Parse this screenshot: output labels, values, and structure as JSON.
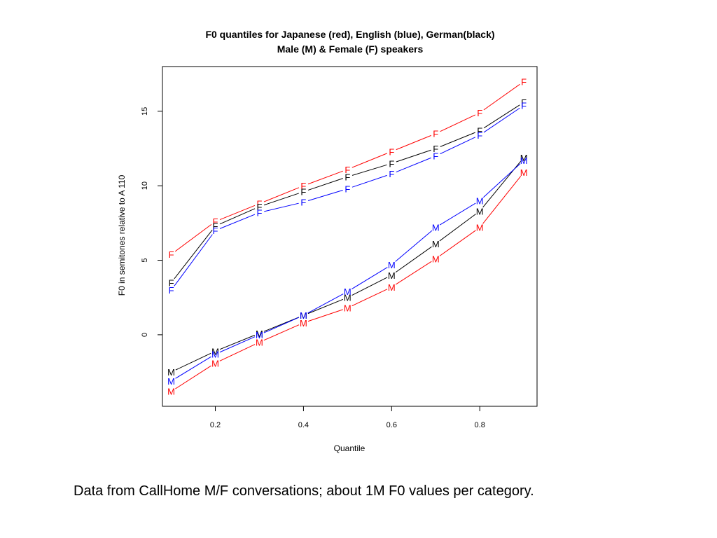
{
  "chart_data": {
    "type": "line",
    "title": "F0 quantiles for Japanese (red), English (blue), German(black)",
    "subtitle": "Male (M) & Female (F) speakers",
    "xlabel": "Quantile",
    "ylabel": "F0 in semitones relative to A 110",
    "xlim": [
      0.08,
      0.93
    ],
    "ylim": [
      -4.8,
      18
    ],
    "x_ticks": [
      "0.2",
      "0.4",
      "0.6",
      "0.8"
    ],
    "y_ticks": [
      "0",
      "5",
      "10",
      "15"
    ],
    "grid": false,
    "x": [
      0.1,
      0.2,
      0.3,
      0.4,
      0.5,
      0.6,
      0.7,
      0.8,
      0.9
    ],
    "series": [
      {
        "marker": "F",
        "color": "#ff0000",
        "values": [
          5.4,
          7.6,
          8.8,
          10.0,
          11.1,
          12.3,
          13.5,
          14.9,
          17.0
        ]
      },
      {
        "marker": "F",
        "color": "#000000",
        "values": [
          3.5,
          7.3,
          8.6,
          9.6,
          10.6,
          11.5,
          12.5,
          13.7,
          15.6
        ]
      },
      {
        "marker": "F",
        "color": "#0000ff",
        "values": [
          3.0,
          7.0,
          8.2,
          8.9,
          9.8,
          10.8,
          12.0,
          13.4,
          15.4
        ]
      },
      {
        "marker": "M",
        "color": "#ff0000",
        "values": [
          -3.8,
          -1.9,
          -0.5,
          0.8,
          1.8,
          3.2,
          5.1,
          7.2,
          10.9
        ]
      },
      {
        "marker": "M",
        "color": "#000000",
        "values": [
          -2.5,
          -1.1,
          0.1,
          1.3,
          2.5,
          4.0,
          6.1,
          8.3,
          11.9
        ]
      },
      {
        "marker": "M",
        "color": "#0000ff",
        "values": [
          -3.1,
          -1.3,
          0.0,
          1.3,
          2.9,
          4.7,
          7.2,
          9.0,
          11.7
        ]
      }
    ]
  },
  "caption": "Data from CallHome M/F conversations; about 1M F0 values per category."
}
